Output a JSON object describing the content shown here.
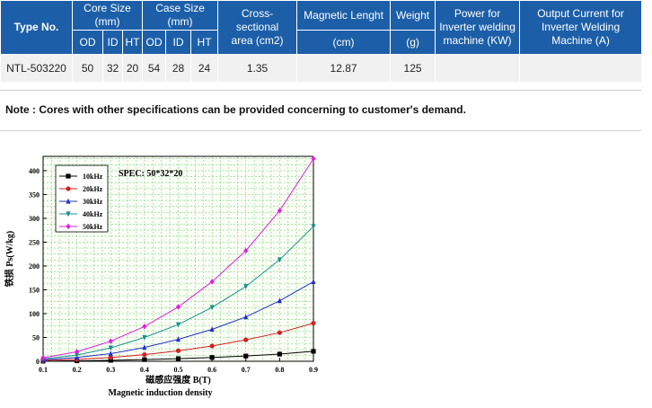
{
  "table": {
    "headers": {
      "type_no": "Type No.",
      "core_size": "Core Size (mm)",
      "case_size": "Case Size (mm)",
      "cross_line1": "Cross-",
      "cross_line2": "sectional",
      "cross_line3": "area (cm2)",
      "magnetic_length": "Magnetic Lenght",
      "magnetic_length_unit": "(cm)",
      "weight": "Weight",
      "weight_unit": "(g)",
      "power_line1": "Power for",
      "power_line2": "Inverter welding",
      "power_line3": "machine (KW)",
      "output_line1": "Output Current for",
      "output_line2": "Inverter Welding",
      "output_line3": "Machine (A)",
      "od": "OD",
      "id": "ID",
      "ht": "HT"
    },
    "row": {
      "type_no": "NTL-503220",
      "core_od": "50",
      "core_id": "32",
      "core_ht": "20",
      "case_od": "54",
      "case_id": "28",
      "case_ht": "24",
      "cross_area": "1.35",
      "magnetic_length": "12.87",
      "weight": "125",
      "power": "",
      "output": ""
    },
    "colors": {
      "header_bg": "#1c5fa8",
      "header_text": "#ffffff",
      "cell_bg": "#f1f1f1"
    }
  },
  "note": "Note : Cores with other specifications can be provided concerning to customer's demand.",
  "chart_data": {
    "type": "line",
    "title": "SPEC:  50*32*20",
    "ylabel": "铁损 Ps(W/kg)",
    "xlabel_cn": "磁感应强度 B(T)",
    "xlabel_en": "Magnetic induction density",
    "xlim": [
      0.1,
      0.9
    ],
    "ylim": [
      0,
      430
    ],
    "x_ticks": [
      "0.1",
      "0.2",
      "0.3",
      "0.4",
      "0.5",
      "0.6",
      "0.7",
      "0.8",
      "0.9"
    ],
    "y_ticks": [
      "0",
      "50",
      "100",
      "150",
      "200",
      "250",
      "300",
      "350",
      "400"
    ],
    "grid": true,
    "legend_position": "top-left",
    "x": [
      0.1,
      0.2,
      0.3,
      0.4,
      0.5,
      0.6,
      0.7,
      0.8,
      0.9
    ],
    "series": [
      {
        "name": "10kHz",
        "color": "#000000",
        "marker": "square",
        "values": [
          0.3,
          1,
          2,
          3.5,
          5.5,
          8,
          11,
          15,
          21
        ]
      },
      {
        "name": "20kHz",
        "color": "#d42020",
        "marker": "circle",
        "values": [
          1.5,
          4,
          8,
          14,
          22,
          32,
          45,
          60,
          80
        ]
      },
      {
        "name": "30kHz",
        "color": "#2030c8",
        "marker": "triangle",
        "values": [
          3,
          8,
          16,
          29,
          46,
          67,
          93,
          127,
          167
        ]
      },
      {
        "name": "40kHz",
        "color": "#18908a",
        "marker": "triangle-down",
        "values": [
          5,
          13,
          28,
          50,
          77,
          113,
          157,
          213,
          283
        ]
      },
      {
        "name": "50kHz",
        "color": "#e020e0",
        "marker": "diamond",
        "values": [
          7,
          20,
          42,
          73,
          114,
          167,
          232,
          316,
          425
        ]
      }
    ]
  }
}
